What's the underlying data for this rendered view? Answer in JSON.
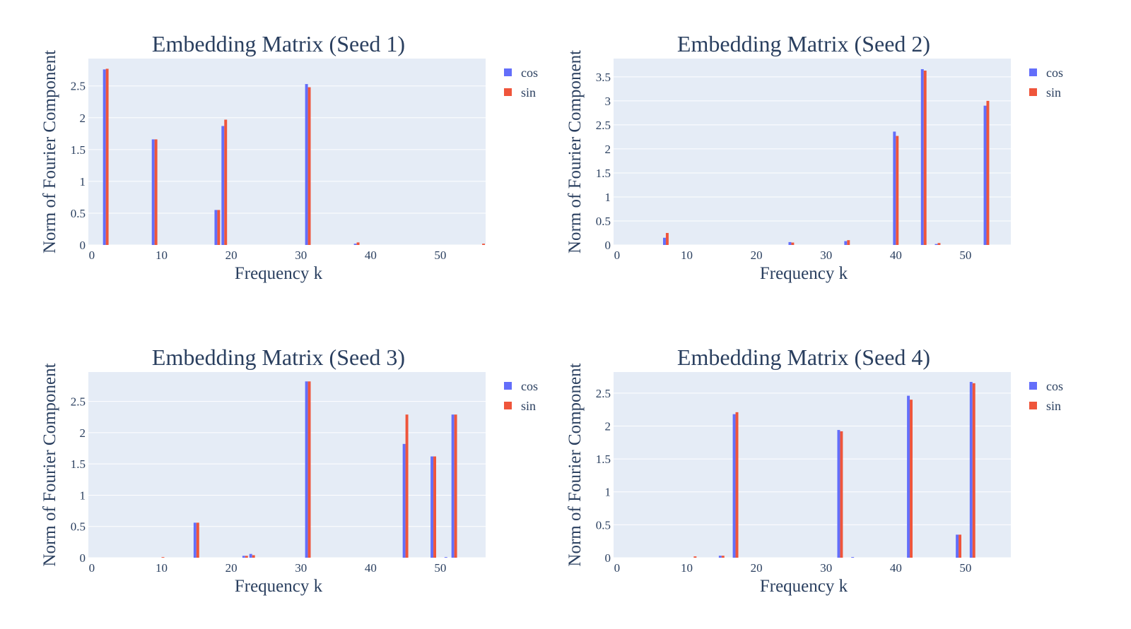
{
  "chart_data": [
    {
      "type": "bar",
      "title": "Embedding Matrix (Seed 1)",
      "x_label": "Frequency k",
      "y_label": "Norm of Fourier Component",
      "x": [
        2,
        9,
        18,
        19,
        31,
        38,
        56
      ],
      "series": [
        {
          "name": "cos",
          "color": "#636efa",
          "values": [
            2.76,
            1.66,
            0.55,
            1.87,
            2.53,
            0.02,
            0
          ]
        },
        {
          "name": "sin",
          "color": "#ef553b",
          "values": [
            2.77,
            1.66,
            0.55,
            1.97,
            2.48,
            0.04,
            0.02
          ]
        }
      ],
      "xlim": [
        -0.5,
        56.5
      ],
      "xticks": [
        0,
        10,
        20,
        30,
        40,
        50
      ],
      "ylim": [
        0,
        2.93
      ],
      "yticks": [
        0,
        0.5,
        1,
        1.5,
        2,
        2.5
      ],
      "grid": true
    },
    {
      "type": "bar",
      "title": "Embedding Matrix (Seed 2)",
      "x_label": "Frequency k",
      "y_label": "Norm of Fourier Component",
      "x": [
        7,
        25,
        33,
        40,
        44,
        46,
        53
      ],
      "series": [
        {
          "name": "cos",
          "color": "#636efa",
          "values": [
            0.15,
            0.06,
            0.08,
            2.36,
            3.66,
            0.02,
            2.9
          ]
        },
        {
          "name": "sin",
          "color": "#ef553b",
          "values": [
            0.25,
            0.05,
            0.1,
            2.27,
            3.63,
            0.04,
            3.0
          ]
        }
      ],
      "xlim": [
        -0.5,
        56.5
      ],
      "xticks": [
        0,
        10,
        20,
        30,
        40,
        50
      ],
      "ylim": [
        0,
        3.88
      ],
      "yticks": [
        0,
        0.5,
        1,
        1.5,
        2,
        2.5,
        3,
        3.5
      ],
      "grid": true
    },
    {
      "type": "bar",
      "title": "Embedding Matrix (Seed 3)",
      "x_label": "Frequency k",
      "y_label": "Norm of Fourier Component",
      "x": [
        10,
        15,
        22,
        23,
        31,
        45,
        49,
        51,
        52
      ],
      "series": [
        {
          "name": "cos",
          "color": "#636efa",
          "values": [
            0,
            0.56,
            0.03,
            0.06,
            2.82,
            1.82,
            1.62,
            0.01,
            2.29
          ]
        },
        {
          "name": "sin",
          "color": "#ef553b",
          "values": [
            0.01,
            0.56,
            0.03,
            0.04,
            2.82,
            2.29,
            1.62,
            0,
            2.29
          ]
        }
      ],
      "xlim": [
        -0.5,
        56.5
      ],
      "xticks": [
        0,
        10,
        20,
        30,
        40,
        50
      ],
      "ylim": [
        0,
        2.97
      ],
      "yticks": [
        0,
        0.5,
        1,
        1.5,
        2,
        2.5
      ],
      "grid": true
    },
    {
      "type": "bar",
      "title": "Embedding Matrix (Seed 4)",
      "x_label": "Frequency k",
      "y_label": "Norm of Fourier Component",
      "x": [
        11,
        15,
        17,
        32,
        34,
        42,
        49,
        51
      ],
      "series": [
        {
          "name": "cos",
          "color": "#636efa",
          "values": [
            0,
            0.03,
            2.18,
            1.94,
            0.01,
            2.46,
            0.35,
            2.67
          ]
        },
        {
          "name": "sin",
          "color": "#ef553b",
          "values": [
            0.02,
            0.03,
            2.21,
            1.92,
            0,
            2.4,
            0.35,
            2.65
          ]
        }
      ],
      "xlim": [
        -0.5,
        56.5
      ],
      "xticks": [
        0,
        10,
        20,
        30,
        40,
        50
      ],
      "ylim": [
        0,
        2.82
      ],
      "yticks": [
        0,
        0.5,
        1,
        1.5,
        2,
        2.5
      ],
      "grid": true
    }
  ]
}
